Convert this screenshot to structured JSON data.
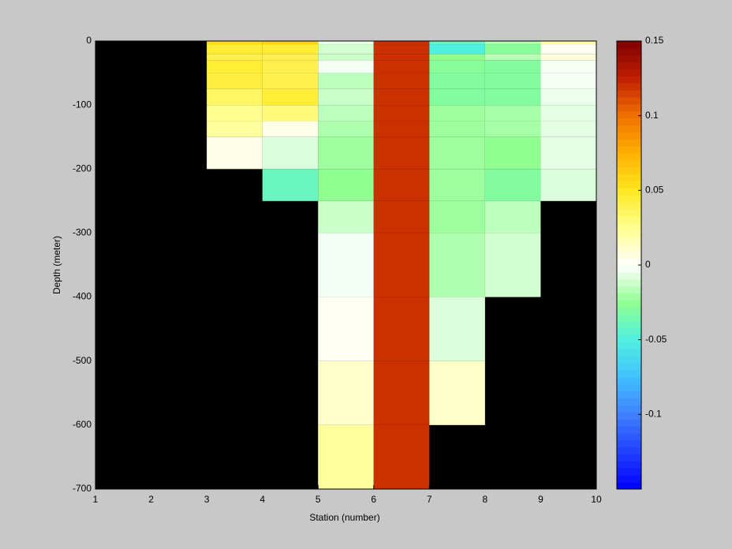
{
  "chart_data": {
    "type": "heatmap",
    "x_label": "Station (number)",
    "y_label": "Depth (meter)",
    "x": [
      1,
      2,
      3,
      4,
      5,
      6,
      7,
      8,
      9,
      10
    ],
    "y": [
      0,
      -5,
      -20,
      -30,
      -50,
      -75,
      -100,
      -125,
      -150,
      -200,
      -250,
      -300,
      -400,
      -500,
      -600,
      -700
    ],
    "values": [
      [
        null,
        null,
        0.055,
        0.06,
        -0.005,
        0.12,
        -0.04,
        -0.018,
        0.02
      ],
      [
        null,
        null,
        0.045,
        0.045,
        -0.01,
        0.12,
        -0.05,
        -0.028,
        0.003
      ],
      [
        null,
        null,
        0.04,
        0.04,
        -0.012,
        0.12,
        -0.025,
        -0.016,
        0.008
      ],
      [
        null,
        null,
        0.045,
        0.04,
        -0.002,
        0.12,
        -0.028,
        -0.03,
        -0.002
      ],
      [
        null,
        null,
        0.043,
        0.04,
        -0.015,
        0.12,
        -0.03,
        -0.03,
        -0.002
      ],
      [
        null,
        null,
        0.035,
        0.045,
        -0.012,
        0.12,
        -0.03,
        -0.03,
        -0.004
      ],
      [
        null,
        null,
        0.025,
        0.03,
        -0.015,
        0.12,
        -0.022,
        -0.02,
        -0.006
      ],
      [
        null,
        null,
        0.022,
        0.005,
        -0.018,
        0.12,
        -0.022,
        -0.02,
        -0.006
      ],
      [
        null,
        null,
        0.005,
        -0.008,
        -0.022,
        0.12,
        -0.022,
        -0.025,
        -0.006
      ],
      [
        null,
        null,
        null,
        -0.04,
        -0.025,
        0.12,
        -0.022,
        -0.03,
        -0.008
      ],
      [
        null,
        null,
        null,
        null,
        -0.012,
        0.12,
        -0.022,
        -0.015,
        null
      ],
      [
        null,
        null,
        null,
        null,
        -0.003,
        0.12,
        -0.018,
        -0.01,
        null
      ],
      [
        null,
        null,
        null,
        null,
        0.002,
        0.12,
        -0.008,
        null,
        null
      ],
      [
        null,
        null,
        null,
        null,
        0.012,
        0.12,
        0.012,
        null,
        null
      ],
      [
        null,
        null,
        null,
        null,
        0.022,
        0.12,
        null,
        null,
        null
      ]
    ],
    "xlim": [
      1,
      10
    ],
    "xticks": [
      1,
      2,
      3,
      4,
      5,
      6,
      7,
      8,
      9,
      10
    ],
    "ylim": [
      -700,
      0
    ],
    "yticks": [
      0,
      -100,
      -200,
      -300,
      -400,
      -500,
      -600,
      -700
    ],
    "clim": [
      -0.15,
      0.15
    ],
    "cticks": [
      -0.1,
      -0.05,
      0,
      0.05,
      0.1,
      0.15
    ],
    "colormap": [
      "#0000ff",
      "#2040ff",
      "#4080ff",
      "#40c0ff",
      "#50f0e0",
      "#90ff90",
      "#ffffff",
      "#ffff90",
      "#ffe820",
      "#ffb000",
      "#f07000",
      "#c02000",
      "#800000"
    ],
    "missing_color": "#000000"
  }
}
